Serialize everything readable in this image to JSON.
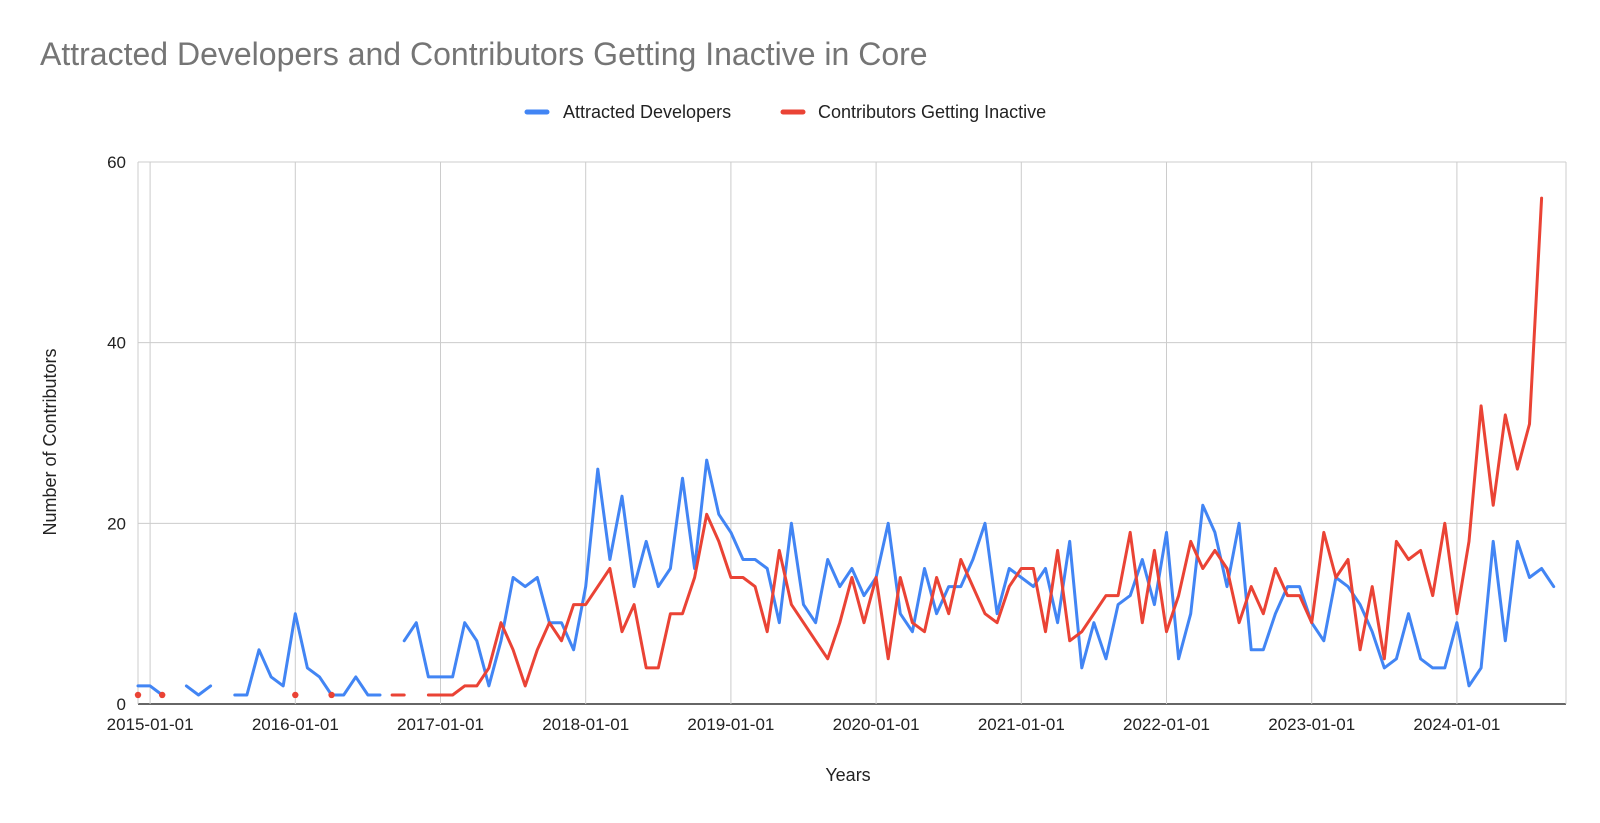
{
  "title": "Attracted Developers and Contributors Getting Inactive in Core",
  "chart_data": {
    "type": "line",
    "title": "Attracted Developers and Contributors Getting Inactive in Core",
    "xlabel": "Years",
    "ylabel": "Number of Contributors",
    "x_start": "2014-12",
    "x_ticks": [
      "2015-01-01",
      "2016-01-01",
      "2017-01-01",
      "2018-01-01",
      "2019-01-01",
      "2020-01-01",
      "2021-01-01",
      "2022-01-01",
      "2023-01-01",
      "2024-01-01"
    ],
    "y_ticks": [
      0,
      20,
      40,
      60
    ],
    "ylim": [
      0,
      60
    ],
    "grid": true,
    "legend_position": "top",
    "series": [
      {
        "name": "Attracted Developers",
        "color": "#4285F4",
        "values": [
          2,
          2,
          1,
          null,
          2,
          1,
          2,
          null,
          1,
          1,
          6,
          3,
          2,
          10,
          4,
          3,
          1,
          1,
          3,
          1,
          1,
          null,
          7,
          9,
          3,
          3,
          3,
          9,
          7,
          2,
          7,
          14,
          13,
          14,
          9,
          9,
          6,
          13,
          26,
          16,
          23,
          13,
          18,
          13,
          15,
          25,
          15,
          27,
          21,
          19,
          16,
          16,
          15,
          9,
          20,
          11,
          9,
          16,
          13,
          15,
          12,
          14,
          20,
          10,
          8,
          15,
          10,
          13,
          13,
          16,
          20,
          10,
          15,
          14,
          13,
          15,
          9,
          18,
          4,
          9,
          5,
          11,
          12,
          16,
          11,
          19,
          5,
          10,
          22,
          19,
          13,
          20,
          6,
          6,
          10,
          13,
          13,
          9,
          7,
          14,
          13,
          11,
          8,
          4,
          5,
          10,
          5,
          4,
          4,
          9,
          2,
          4,
          18,
          7,
          18,
          14,
          15,
          13
        ]
      },
      {
        "name": "Contributors Getting Inactive",
        "color": "#EA4335",
        "values": [
          1,
          null,
          1,
          null,
          null,
          null,
          null,
          null,
          null,
          null,
          null,
          null,
          null,
          1,
          null,
          null,
          1,
          null,
          null,
          null,
          null,
          1,
          1,
          null,
          1,
          1,
          1,
          2,
          2,
          4,
          9,
          6,
          2,
          6,
          9,
          7,
          11,
          11,
          13,
          15,
          8,
          11,
          4,
          4,
          10,
          10,
          14,
          21,
          18,
          14,
          14,
          13,
          8,
          17,
          11,
          9,
          7,
          5,
          9,
          14,
          9,
          14,
          5,
          14,
          9,
          8,
          14,
          10,
          16,
          13,
          10,
          9,
          13,
          15,
          15,
          8,
          17,
          7,
          8,
          10,
          12,
          12,
          19,
          9,
          17,
          8,
          12,
          18,
          15,
          17,
          15,
          9,
          13,
          10,
          15,
          12,
          12,
          9,
          19,
          14,
          16,
          6,
          13,
          5,
          18,
          16,
          17,
          12,
          20,
          10,
          18,
          33,
          22,
          32,
          26,
          31,
          56
        ]
      }
    ]
  }
}
